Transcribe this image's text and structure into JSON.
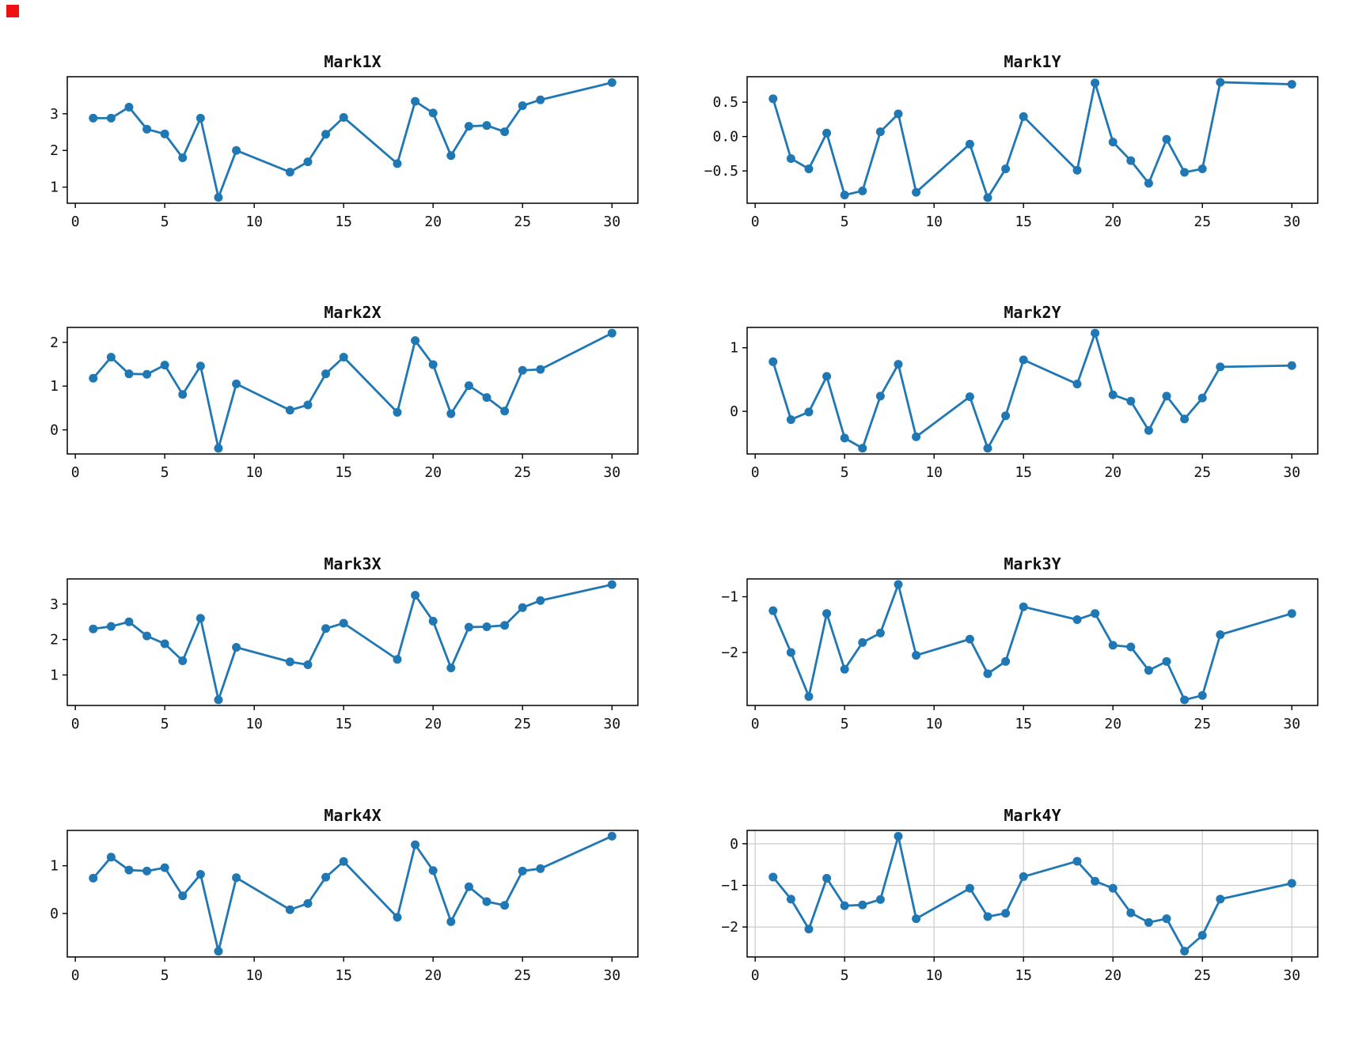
{
  "figure": {
    "background": "#ffffff",
    "line_color": "#1f77b4",
    "marker_color": "#1f77b4",
    "axis_color": "#000000",
    "text_color": "#111111",
    "grid_color": "#cccccc",
    "corner_marker_color": "#ee1111"
  },
  "chart_data": [
    {
      "type": "line",
      "title": "Mark1X",
      "x": [
        1,
        2,
        3,
        4,
        5,
        6,
        7,
        8,
        9,
        12,
        13,
        14,
        15,
        18,
        19,
        20,
        21,
        22,
        23,
        24,
        25,
        26,
        30
      ],
      "values": [
        2.88,
        2.88,
        3.18,
        2.58,
        2.45,
        1.8,
        2.88,
        0.72,
        2.0,
        1.41,
        1.69,
        2.44,
        2.9,
        1.64,
        3.34,
        3.02,
        1.86,
        2.66,
        2.68,
        2.51,
        3.22,
        3.38,
        3.85
      ],
      "xlim": [
        -0.45,
        31.45
      ],
      "ylim": [
        0.56,
        4.01
      ],
      "xticks": [
        0,
        5,
        10,
        15,
        20,
        25,
        30
      ],
      "xtick_labels": [
        "0",
        "5",
        "10",
        "15",
        "20",
        "25",
        "30"
      ],
      "yticks": [
        1,
        2,
        3
      ],
      "ytick_labels": [
        "1",
        "2",
        "3"
      ],
      "grid": false
    },
    {
      "type": "line",
      "title": "Mark1Y",
      "x": [
        1,
        2,
        3,
        4,
        5,
        6,
        7,
        8,
        9,
        12,
        13,
        14,
        15,
        18,
        19,
        20,
        21,
        22,
        23,
        24,
        25,
        26,
        30
      ],
      "values": [
        0.55,
        -0.32,
        -0.47,
        0.05,
        -0.85,
        -0.79,
        0.07,
        0.33,
        -0.81,
        -0.11,
        -0.89,
        -0.47,
        0.29,
        -0.49,
        0.78,
        -0.08,
        -0.35,
        -0.68,
        -0.04,
        -0.52,
        -0.47,
        0.79,
        0.76
      ],
      "xlim": [
        -0.45,
        31.45
      ],
      "ylim": [
        -0.97,
        0.87
      ],
      "xticks": [
        0,
        5,
        10,
        15,
        20,
        25,
        30
      ],
      "xtick_labels": [
        "0",
        "5",
        "10",
        "15",
        "20",
        "25",
        "30"
      ],
      "yticks": [
        -0.5,
        0.0,
        0.5
      ],
      "ytick_labels": [
        "−0.5",
        "0.0",
        "0.5"
      ],
      "grid": false
    },
    {
      "type": "line",
      "title": "Mark2X",
      "x": [
        1,
        2,
        3,
        4,
        5,
        6,
        7,
        8,
        9,
        12,
        13,
        14,
        15,
        18,
        19,
        20,
        21,
        22,
        23,
        24,
        25,
        26,
        30
      ],
      "values": [
        1.18,
        1.66,
        1.28,
        1.27,
        1.48,
        0.81,
        1.46,
        -0.42,
        1.05,
        0.45,
        0.57,
        1.28,
        1.66,
        0.4,
        2.04,
        1.49,
        0.37,
        1.01,
        0.74,
        0.43,
        1.36,
        1.38,
        2.21
      ],
      "xlim": [
        -0.45,
        31.45
      ],
      "ylim": [
        -0.55,
        2.34
      ],
      "xticks": [
        0,
        5,
        10,
        15,
        20,
        25,
        30
      ],
      "xtick_labels": [
        "0",
        "5",
        "10",
        "15",
        "20",
        "25",
        "30"
      ],
      "yticks": [
        0,
        1,
        2
      ],
      "ytick_labels": [
        "0",
        "1",
        "2"
      ],
      "grid": false
    },
    {
      "type": "line",
      "title": "Mark2Y",
      "x": [
        1,
        2,
        3,
        4,
        5,
        6,
        7,
        8,
        9,
        12,
        13,
        14,
        15,
        18,
        19,
        20,
        21,
        22,
        23,
        24,
        25,
        26,
        30
      ],
      "values": [
        0.78,
        -0.13,
        -0.01,
        0.55,
        -0.42,
        -0.58,
        0.24,
        0.74,
        -0.4,
        0.23,
        -0.58,
        -0.07,
        0.81,
        0.43,
        1.23,
        0.26,
        0.16,
        -0.3,
        0.24,
        -0.12,
        0.21,
        0.7,
        0.72
      ],
      "xlim": [
        -0.45,
        31.45
      ],
      "ylim": [
        -0.67,
        1.32
      ],
      "xticks": [
        0,
        5,
        10,
        15,
        20,
        25,
        30
      ],
      "xtick_labels": [
        "0",
        "5",
        "10",
        "15",
        "20",
        "25",
        "30"
      ],
      "yticks": [
        0,
        1
      ],
      "ytick_labels": [
        "0",
        "1"
      ],
      "grid": false
    },
    {
      "type": "line",
      "title": "Mark3X",
      "x": [
        1,
        2,
        3,
        4,
        5,
        6,
        7,
        8,
        9,
        12,
        13,
        14,
        15,
        18,
        19,
        20,
        21,
        22,
        23,
        24,
        25,
        26,
        30
      ],
      "values": [
        2.3,
        2.37,
        2.5,
        2.1,
        1.88,
        1.4,
        2.6,
        0.3,
        1.78,
        1.37,
        1.29,
        2.31,
        2.46,
        1.44,
        3.25,
        2.52,
        1.2,
        2.35,
        2.36,
        2.4,
        2.9,
        3.1,
        3.55
      ],
      "xlim": [
        -0.45,
        31.45
      ],
      "ylim": [
        0.14,
        3.71
      ],
      "xticks": [
        0,
        5,
        10,
        15,
        20,
        25,
        30
      ],
      "xtick_labels": [
        "0",
        "5",
        "10",
        "15",
        "20",
        "25",
        "30"
      ],
      "yticks": [
        1,
        2,
        3
      ],
      "ytick_labels": [
        "1",
        "2",
        "3"
      ],
      "grid": false
    },
    {
      "type": "line",
      "title": "Mark3Y",
      "x": [
        1,
        2,
        3,
        4,
        5,
        6,
        7,
        8,
        9,
        12,
        13,
        14,
        15,
        18,
        19,
        20,
        21,
        22,
        23,
        24,
        25,
        26,
        30
      ],
      "values": [
        -1.25,
        -2.0,
        -2.79,
        -1.3,
        -2.3,
        -1.82,
        -1.65,
        -0.78,
        -2.05,
        -1.76,
        -2.38,
        -2.16,
        -1.18,
        -1.41,
        -1.3,
        -1.87,
        -1.9,
        -2.32,
        -2.16,
        -2.85,
        -2.77,
        -1.68,
        -1.3
      ],
      "xlim": [
        -0.45,
        31.45
      ],
      "ylim": [
        -2.95,
        -0.68
      ],
      "xticks": [
        0,
        5,
        10,
        15,
        20,
        25,
        30
      ],
      "xtick_labels": [
        "0",
        "5",
        "10",
        "15",
        "20",
        "25",
        "30"
      ],
      "yticks": [
        -2,
        -1
      ],
      "ytick_labels": [
        "−2",
        "−1"
      ],
      "grid": false
    },
    {
      "type": "line",
      "title": "Mark4X",
      "x": [
        1,
        2,
        3,
        4,
        5,
        6,
        7,
        8,
        9,
        12,
        13,
        14,
        15,
        18,
        19,
        20,
        21,
        22,
        23,
        24,
        25,
        26,
        30
      ],
      "values": [
        0.74,
        1.18,
        0.91,
        0.89,
        0.96,
        0.37,
        0.82,
        -0.79,
        0.75,
        0.08,
        0.21,
        0.76,
        1.09,
        -0.08,
        1.44,
        0.9,
        -0.17,
        0.56,
        0.25,
        0.17,
        0.89,
        0.94,
        1.62
      ],
      "xlim": [
        -0.45,
        31.45
      ],
      "ylim": [
        -0.91,
        1.74
      ],
      "xticks": [
        0,
        5,
        10,
        15,
        20,
        25,
        30
      ],
      "xtick_labels": [
        "0",
        "5",
        "10",
        "15",
        "20",
        "25",
        "30"
      ],
      "yticks": [
        0,
        1
      ],
      "ytick_labels": [
        "0",
        "1"
      ],
      "grid": false
    },
    {
      "type": "line",
      "title": "Mark4Y",
      "x": [
        1,
        2,
        3,
        4,
        5,
        6,
        7,
        8,
        9,
        12,
        13,
        14,
        15,
        18,
        19,
        20,
        21,
        22,
        23,
        24,
        25,
        26,
        30
      ],
      "values": [
        -0.8,
        -1.33,
        -2.05,
        -0.83,
        -1.49,
        -1.47,
        -1.34,
        0.18,
        -1.8,
        -1.07,
        -1.75,
        -1.67,
        -0.79,
        -0.42,
        -0.9,
        -1.07,
        -1.66,
        -1.89,
        -1.8,
        -2.58,
        -2.2,
        -1.33,
        -0.95
      ],
      "xlim": [
        -0.45,
        31.45
      ],
      "ylim": [
        -2.72,
        0.32
      ],
      "xticks": [
        0,
        5,
        10,
        15,
        20,
        25,
        30
      ],
      "xtick_labels": [
        "0",
        "5",
        "10",
        "15",
        "20",
        "25",
        "30"
      ],
      "yticks": [
        -2,
        -1,
        0
      ],
      "ytick_labels": [
        "−2",
        "−1",
        "0"
      ],
      "grid": true
    }
  ]
}
